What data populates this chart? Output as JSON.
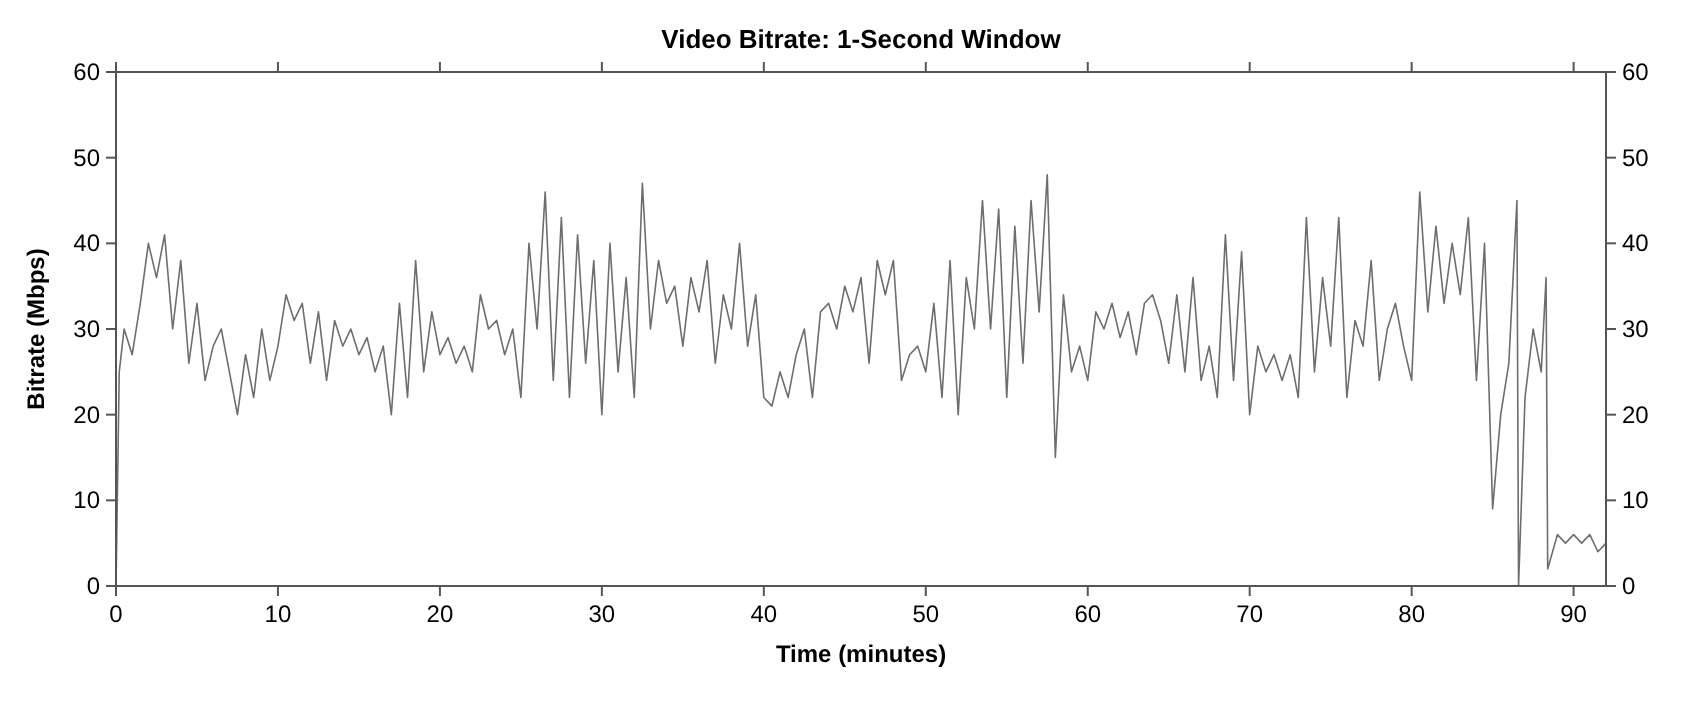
{
  "chart_data": {
    "type": "line",
    "title": "Video Bitrate: 1-Second Window",
    "xlabel": "Time (minutes)",
    "ylabel": "Bitrate (Mbps)",
    "xlim": [
      0,
      92
    ],
    "xticks": [
      0,
      10,
      20,
      30,
      40,
      50,
      60,
      70,
      80,
      90
    ],
    "ylim": [
      0,
      60
    ],
    "yticks": [
      0,
      10,
      20,
      30,
      40,
      50,
      60
    ],
    "y2lim": [
      0,
      60
    ],
    "y2ticks": [
      0,
      10,
      20,
      30,
      40,
      50,
      60
    ],
    "grid": false,
    "series": [
      {
        "color": "#6e6e6e",
        "x": [
          0,
          0.2,
          0.5,
          1,
          1.5,
          2,
          2.5,
          3,
          3.5,
          4,
          4.5,
          5,
          5.5,
          6,
          6.5,
          7,
          7.5,
          8,
          8.5,
          9,
          9.5,
          10,
          10.5,
          11,
          11.5,
          12,
          12.5,
          13,
          13.5,
          14,
          14.5,
          15,
          15.5,
          16,
          16.5,
          17,
          17.5,
          18,
          18.5,
          19,
          19.5,
          20,
          20.5,
          21,
          21.5,
          22,
          22.5,
          23,
          23.5,
          24,
          24.5,
          25,
          25.5,
          26,
          26.5,
          27,
          27.5,
          28,
          28.5,
          29,
          29.5,
          30,
          30.5,
          31,
          31.5,
          32,
          32.5,
          33,
          33.5,
          34,
          34.5,
          35,
          35.5,
          36,
          36.5,
          37,
          37.5,
          38,
          38.5,
          39,
          39.5,
          40,
          40.5,
          41,
          41.5,
          42,
          42.5,
          43,
          43.5,
          44,
          44.5,
          45,
          45.5,
          46,
          46.5,
          47,
          47.5,
          48,
          48.5,
          49,
          49.5,
          50,
          50.5,
          51,
          51.5,
          52,
          52.5,
          53,
          53.5,
          54,
          54.5,
          55,
          55.5,
          56,
          56.5,
          57,
          57.5,
          58,
          58.5,
          59,
          59.5,
          60,
          60.5,
          61,
          61.5,
          62,
          62.5,
          63,
          63.5,
          64,
          64.5,
          65,
          65.5,
          66,
          66.5,
          67,
          67.5,
          68,
          68.5,
          69,
          69.5,
          70,
          70.5,
          71,
          71.5,
          72,
          72.5,
          73,
          73.5,
          74,
          74.5,
          75,
          75.5,
          76,
          76.5,
          77,
          77.5,
          78,
          78.5,
          79,
          79.5,
          80,
          80.5,
          81,
          81.5,
          82,
          82.5,
          83,
          83.5,
          84,
          84.5,
          85,
          85.5,
          86,
          86.5,
          86.6,
          87,
          87.5,
          88,
          88.3,
          88.4,
          88.7,
          89,
          89.5,
          90,
          90.5,
          91,
          91.5,
          92
        ],
        "values": [
          0,
          25,
          30,
          27,
          33,
          40,
          36,
          41,
          30,
          38,
          26,
          33,
          24,
          28,
          30,
          25,
          20,
          27,
          22,
          30,
          24,
          28,
          34,
          31,
          33,
          26,
          32,
          24,
          31,
          28,
          30,
          27,
          29,
          25,
          28,
          20,
          33,
          22,
          38,
          25,
          32,
          27,
          29,
          26,
          28,
          25,
          34,
          30,
          31,
          27,
          30,
          22,
          40,
          30,
          46,
          24,
          43,
          22,
          41,
          26,
          38,
          20,
          40,
          25,
          36,
          22,
          47,
          30,
          38,
          33,
          35,
          28,
          36,
          32,
          38,
          26,
          34,
          30,
          40,
          28,
          34,
          22,
          21,
          25,
          22,
          27,
          30,
          22,
          32,
          33,
          30,
          35,
          32,
          36,
          26,
          38,
          34,
          38,
          24,
          27,
          28,
          25,
          33,
          22,
          38,
          20,
          36,
          30,
          45,
          30,
          44,
          22,
          42,
          26,
          45,
          32,
          48,
          15,
          34,
          25,
          28,
          24,
          32,
          30,
          33,
          29,
          32,
          27,
          33,
          34,
          31,
          26,
          34,
          25,
          36,
          24,
          28,
          22,
          41,
          24,
          39,
          20,
          28,
          25,
          27,
          24,
          27,
          22,
          43,
          25,
          36,
          28,
          43,
          22,
          31,
          28,
          38,
          24,
          30,
          33,
          28,
          24,
          46,
          32,
          42,
          33,
          40,
          34,
          43,
          24,
          40,
          9,
          20,
          26,
          45,
          0,
          22,
          30,
          25,
          36,
          2,
          4,
          6,
          5,
          6,
          5,
          6,
          4,
          5
        ]
      }
    ]
  }
}
